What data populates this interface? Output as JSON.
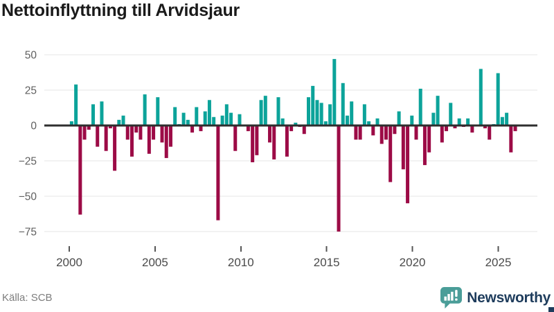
{
  "title": "Nettoinflyttning till Arvidsjaur",
  "source": "Källa: SCB",
  "logo": {
    "text": "Newsworthy"
  },
  "colors": {
    "positive": "#0ca39a",
    "negative": "#9c0b46",
    "zero_line": "#2e2e2e",
    "grid": "#e6e6e6",
    "axis_text": "#5f5f5f",
    "x_axis_text": "#4a4a4a",
    "tick_mark": "#555555",
    "logo_teal": "#4a9d98",
    "logo_navy": "#1e3c5c",
    "source_text": "#7d7d7d"
  },
  "chart_data": {
    "type": "bar",
    "title": "Nettoinflyttning till Arvidsjaur",
    "xlabel": "",
    "ylabel": "",
    "frequency": "quarterly",
    "x_start_year": 2000,
    "x_end_year": 2025,
    "grid": true,
    "ylim": [
      -80,
      55
    ],
    "y_ticks": [
      50,
      25,
      0,
      -25,
      -50,
      -75
    ],
    "y_tick_labels": [
      "50",
      "25",
      "0",
      "−25",
      "−50",
      "−75"
    ],
    "x_tick_years": [
      2000,
      2005,
      2010,
      2015,
      2020,
      2025
    ],
    "x_tick_labels": [
      "2000",
      "2005",
      "2010",
      "2015",
      "2020",
      "2025"
    ],
    "values": [
      3,
      29,
      -63,
      -10,
      -3,
      15,
      -15,
      17,
      -18,
      -2,
      -32,
      4,
      7,
      -10,
      -22,
      -5,
      -10,
      22,
      -20,
      -10,
      20,
      -12,
      -23,
      -15,
      13,
      1,
      9,
      4,
      -5,
      13,
      -4,
      10,
      18,
      6,
      -67,
      7,
      15,
      9,
      -18,
      8,
      0,
      -4,
      -26,
      -21,
      18,
      21,
      -12,
      -24,
      20,
      5,
      -22,
      -4,
      2,
      -1,
      -6,
      20,
      28,
      18,
      16,
      3,
      15,
      47,
      -75,
      30,
      7,
      17,
      -10,
      -10,
      15,
      3,
      -7,
      5,
      -13,
      -10,
      -40,
      -6,
      10,
      -31,
      -55,
      7,
      -10,
      26,
      -28,
      -19,
      9,
      21,
      -12,
      -4,
      16,
      -2,
      5,
      -1,
      5,
      -5,
      0,
      40,
      -2,
      -10,
      1,
      37,
      6,
      9,
      -19,
      -4
    ]
  }
}
